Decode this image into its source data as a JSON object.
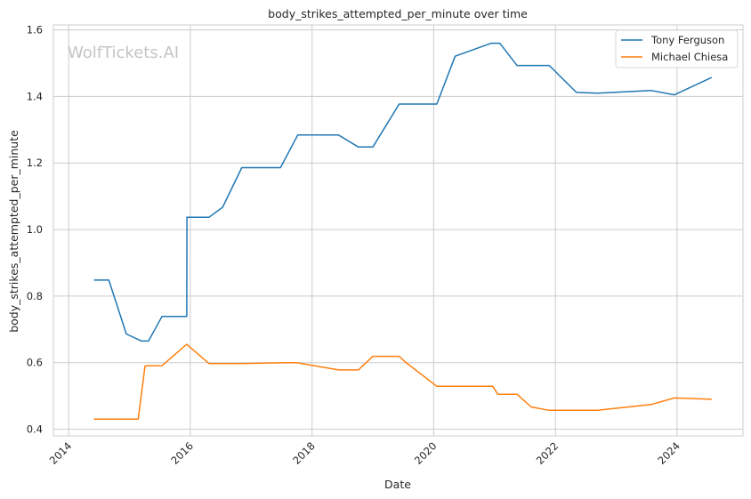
{
  "chart_data": {
    "type": "line",
    "title": "body_strikes_attempted_per_minute over time",
    "xlabel": "Date",
    "ylabel": "body_strikes_attempted_per_minute",
    "watermark": "WolfTickets.AI",
    "xlim": [
      "2013-10-01",
      "2025-01-31"
    ],
    "ylim": [
      0.38,
      1.615
    ],
    "x_ticks": [
      "2014",
      "2016",
      "2018",
      "2020",
      "2022",
      "2024"
    ],
    "y_ticks": [
      "0.4",
      "0.6",
      "0.8",
      "1.0",
      "1.2",
      "1.4",
      "1.6"
    ],
    "grid": true,
    "legend_position": "top-right",
    "series": [
      {
        "name": "Tony Ferguson",
        "color": "#1f77b4",
        "points": [
          [
            "2014-06-01",
            0.848
          ],
          [
            "2014-08-30",
            0.848
          ],
          [
            "2014-12-13",
            0.686
          ],
          [
            "2015-03-14",
            0.665
          ],
          [
            "2015-04-25",
            0.665
          ],
          [
            "2015-07-15",
            0.739
          ],
          [
            "2015-12-11",
            0.739
          ],
          [
            "2015-12-12",
            1.037
          ],
          [
            "2016-04-23",
            1.037
          ],
          [
            "2016-07-13",
            1.067
          ],
          [
            "2016-11-05",
            1.186
          ],
          [
            "2017-06-25",
            1.186
          ],
          [
            "2017-10-07",
            1.284
          ],
          [
            "2018-06-09",
            1.284
          ],
          [
            "2018-10-06",
            1.248
          ],
          [
            "2019-01-01",
            1.248
          ],
          [
            "2019-06-08",
            1.377
          ],
          [
            "2020-01-20",
            1.377
          ],
          [
            "2020-05-09",
            1.521
          ],
          [
            "2020-12-12",
            1.56
          ],
          [
            "2021-02-01",
            1.56
          ],
          [
            "2021-05-15",
            1.493
          ],
          [
            "2021-11-25",
            1.493
          ],
          [
            "2022-05-07",
            1.412
          ],
          [
            "2022-09-10",
            1.41
          ],
          [
            "2023-07-29",
            1.418
          ],
          [
            "2023-12-16",
            1.405
          ],
          [
            "2024-07-27",
            1.457
          ]
        ]
      },
      {
        "name": "Michael Chiesa",
        "color": "#ff7f0e",
        "points": [
          [
            "2014-06-01",
            0.43
          ],
          [
            "2015-02-22",
            0.43
          ],
          [
            "2015-04-04",
            0.59
          ],
          [
            "2015-07-15",
            0.591
          ],
          [
            "2015-12-10",
            0.655
          ],
          [
            "2016-04-23",
            0.597
          ],
          [
            "2016-11-05",
            0.597
          ],
          [
            "2017-07-29",
            0.6
          ],
          [
            "2017-10-01",
            0.6
          ],
          [
            "2018-06-09",
            0.578
          ],
          [
            "2018-10-06",
            0.578
          ],
          [
            "2019-01-01",
            0.619
          ],
          [
            "2019-06-08",
            0.619
          ],
          [
            "2019-07-15",
            0.602
          ],
          [
            "2020-01-20",
            0.529
          ],
          [
            "2020-12-21",
            0.529
          ],
          [
            "2021-01-20",
            0.505
          ],
          [
            "2021-05-15",
            0.505
          ],
          [
            "2021-08-08",
            0.467
          ],
          [
            "2021-11-20",
            0.457
          ],
          [
            "2022-09-10",
            0.457
          ],
          [
            "2023-07-29",
            0.474
          ],
          [
            "2023-12-16",
            0.494
          ],
          [
            "2024-07-27",
            0.49
          ]
        ]
      }
    ]
  }
}
